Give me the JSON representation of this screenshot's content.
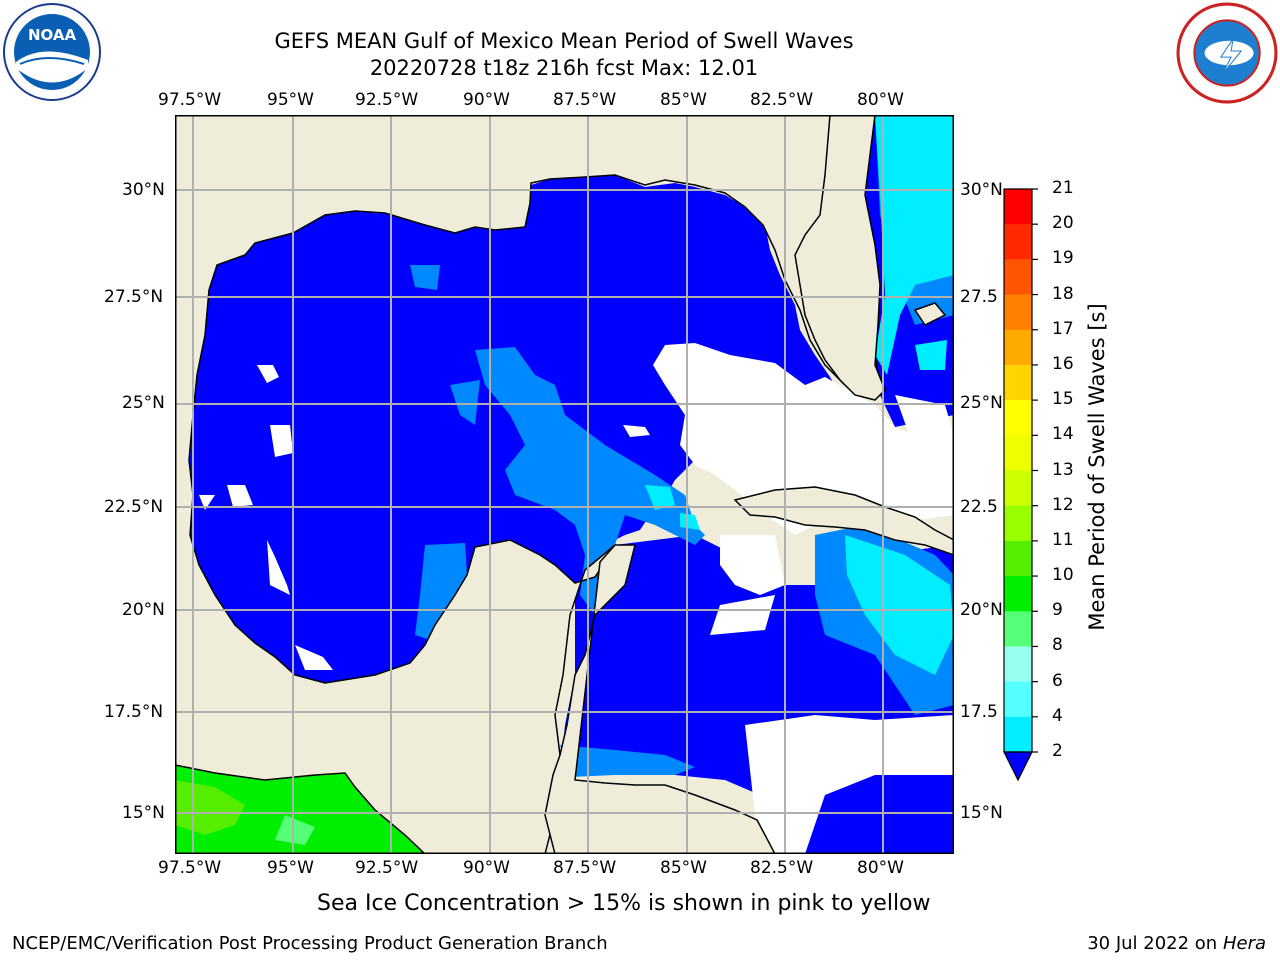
{
  "header": {
    "title_line1": "GEFS MEAN Gulf of Mexico Mean Period of Swell Waves",
    "title_line2": "20220728 t18z 216h fcst   Max: 12.01"
  },
  "logos": {
    "left": "NOAA",
    "right": "National Weather Service"
  },
  "map": {
    "lon_labels": [
      "97.5°W",
      "95°W",
      "92.5°W",
      "90°W",
      "87.5°W",
      "85°W",
      "82.5°W",
      "80°W"
    ],
    "lat_labels_left": [
      "30°N",
      "27.5°N",
      "25°N",
      "22.5°N",
      "20°N",
      "17.5°N",
      "15°N"
    ],
    "lat_labels_right": [
      "30°N",
      "27.5",
      "25°N",
      "22.5",
      "20°N",
      "17.5",
      "15°N"
    ],
    "land_color": "#efedda",
    "grid_color": "#b0b0b0"
  },
  "colorbar": {
    "label": "Mean Period of Swell Waves [s]",
    "ticks": [
      "21",
      "20",
      "19",
      "18",
      "17",
      "16",
      "15",
      "14",
      "13",
      "12",
      "11",
      "10",
      "9",
      "8",
      "6",
      "4",
      "2"
    ],
    "colors": [
      "#ff0000",
      "#ff2a00",
      "#ff5500",
      "#ff7f00",
      "#ffaa00",
      "#ffd400",
      "#ffff00",
      "#eeff00",
      "#ccff00",
      "#99ff00",
      "#55ee00",
      "#00ee00",
      "#55ff77",
      "#99ffee",
      "#55ffff",
      "#00eeff",
      "#0088ff",
      "#0000ff"
    ]
  },
  "footnote": "Sea Ice Concentration > 15% is shown in pink to yellow",
  "footer_left": "NCEP/EMC/Verification Post Processing Product Generation Branch",
  "footer_right_date": "30 Jul 2022 on ",
  "footer_right_host": "Hera"
}
